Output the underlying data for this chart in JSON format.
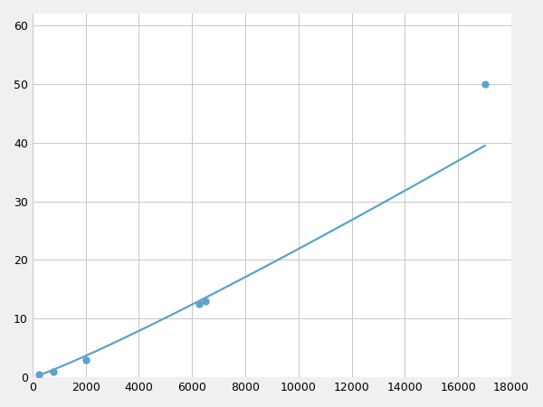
{
  "x": [
    250,
    800,
    2000,
    6250,
    6500,
    17000
  ],
  "y": [
    0.5,
    1.0,
    3.0,
    12.5,
    13.0,
    50.0
  ],
  "marker_x": [
    250,
    800,
    2000,
    6250,
    6500,
    17000
  ],
  "marker_y": [
    0.5,
    1.0,
    3.0,
    12.5,
    13.0,
    50.0
  ],
  "line_color": "#5ba3c9",
  "marker_color": "#5ba3c9",
  "marker_size": 6,
  "line_width": 1.6,
  "xlim": [
    0,
    18000
  ],
  "ylim": [
    0,
    62
  ],
  "xticks": [
    0,
    2000,
    4000,
    6000,
    8000,
    10000,
    12000,
    14000,
    16000,
    18000
  ],
  "yticks": [
    0,
    10,
    20,
    30,
    40,
    50,
    60
  ],
  "grid_color": "#c8c8c8",
  "background_color": "#ffffff",
  "figure_bg": "#f0f0f0"
}
